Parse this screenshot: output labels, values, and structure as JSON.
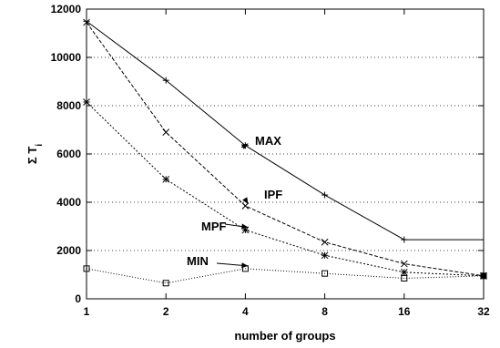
{
  "chart_data": {
    "type": "line",
    "x": [
      1,
      2,
      4,
      8,
      16,
      32
    ],
    "x_tick_labels": [
      "1",
      "2",
      "4",
      "8",
      "16",
      "32"
    ],
    "x_scale": "log2",
    "xlabel": "number of groups",
    "ylabel": "Σ T",
    "ylabel_subscript": "i",
    "ylim": [
      0,
      12000
    ],
    "y_ticks": [
      0,
      2000,
      4000,
      6000,
      8000,
      10000,
      12000
    ],
    "y_tick_labels": [
      "0",
      "2000",
      "4000",
      "6000",
      "8000",
      "10000",
      "12000"
    ],
    "grid": "horizontal-dotted",
    "series": [
      {
        "name": "MAX",
        "values": [
          11500,
          9050,
          6350,
          4300,
          2450,
          2450
        ],
        "step_end": true,
        "style": "solid",
        "marker": "plus",
        "color": "#000000"
      },
      {
        "name": "IPF",
        "values": [
          11450,
          6900,
          3850,
          2350,
          1450,
          950
        ],
        "style": "dashed",
        "marker": "cross",
        "color": "#000000"
      },
      {
        "name": "MPF",
        "values": [
          8150,
          4950,
          2850,
          1800,
          1100,
          950
        ],
        "style": "dotted",
        "marker": "star",
        "color": "#000000"
      },
      {
        "name": "MIN",
        "values": [
          1250,
          650,
          1250,
          1050,
          850,
          950
        ],
        "style": "dotted-fine",
        "marker": "square",
        "color": "#000000"
      }
    ],
    "annotations": [
      {
        "series": "MAX",
        "text": "MAX"
      },
      {
        "series": "IPF",
        "text": "IPF"
      },
      {
        "series": "MPF",
        "text": "MPF"
      },
      {
        "series": "MIN",
        "text": "MIN"
      }
    ]
  }
}
